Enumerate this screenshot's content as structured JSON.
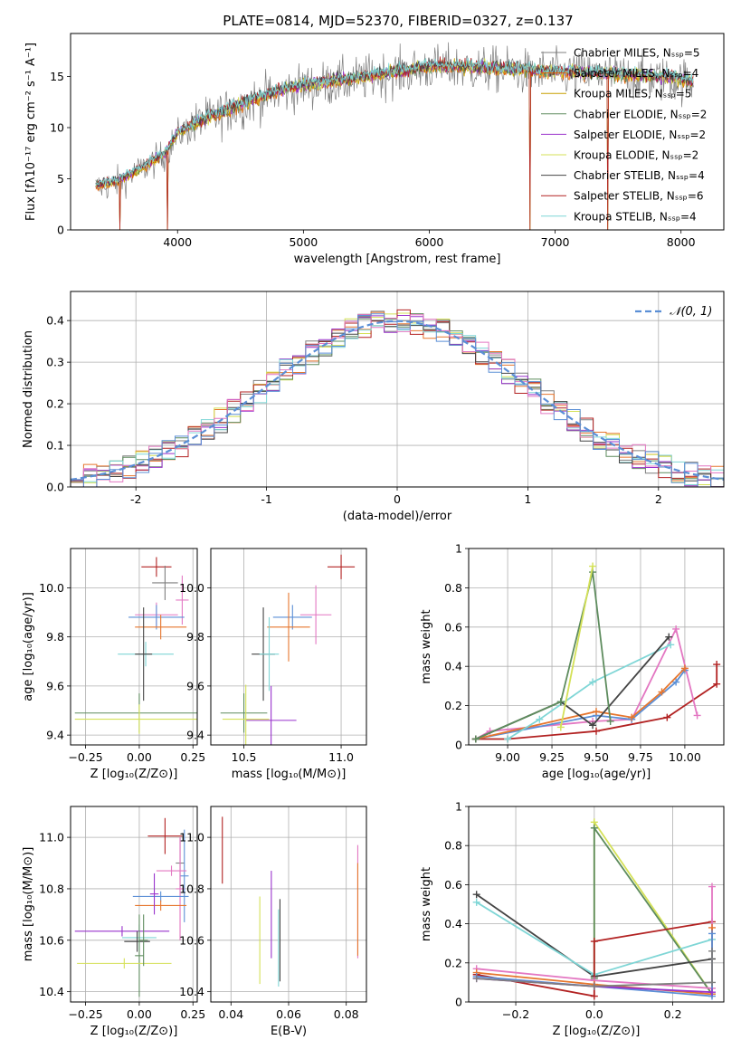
{
  "figure": {
    "title": "PLATE=0814, MJD=52370, FIBERID=0327, z=0.137"
  },
  "chart_data": [
    {
      "id": "spectrum",
      "type": "line",
      "xlabel": "wavelength [Angstrom, rest frame]",
      "ylabel": "Flux [fλ10⁻¹⁷ erg cm⁻² s⁻¹ A⁻¹]",
      "xlim": [
        3150,
        8340
      ],
      "ylim": [
        0,
        19.2
      ],
      "xticks": [
        4000,
        5000,
        6000,
        7000,
        8000
      ],
      "yticks": [
        0,
        5,
        10,
        15
      ],
      "grid": false,
      "legend_position": "right",
      "x_range_data": [
        3350,
        8100
      ],
      "legend": [
        {
          "label": "Chabrier MILES, Nₛₛₚ=5",
          "color": "#7f7f7f"
        },
        {
          "label": "Salpeter MILES, Nₛₛₚ=4",
          "color": "#e66100"
        },
        {
          "label": "Kroupa MILES, Nₛₛₚ=5",
          "color": "#c8a000"
        },
        {
          "label": "Chabrier ELODIE, Nₛₛₚ=2",
          "color": "#5e8c5e"
        },
        {
          "label": "Salpeter ELODIE, Nₛₛₚ=2",
          "color": "#9932cc"
        },
        {
          "label": "Kroupa ELODIE, Nₛₛₚ=2",
          "color": "#d4e157"
        },
        {
          "label": "Chabrier STELIB, Nₛₛₚ=4",
          "color": "#444444"
        },
        {
          "label": "Salpeter STELIB, Nₛₛₚ=6",
          "color": "#b22222"
        },
        {
          "label": "Kroupa STELIB, Nₛₛₚ=4",
          "color": "#7fd6d6"
        }
      ],
      "continuum": {
        "x": [
          3350,
          3500,
          3700,
          3900,
          4000,
          4200,
          4400,
          4600,
          4800,
          5000,
          5200,
          5400,
          5600,
          5800,
          6000,
          6200,
          6400,
          6600,
          6800,
          7000,
          7200,
          7400,
          7600,
          7800,
          8000,
          8100
        ],
        "y": [
          4.3,
          4.7,
          6.0,
          7.5,
          9.5,
          10.8,
          11.8,
          12.8,
          13.6,
          14.2,
          14.5,
          14.8,
          15.3,
          15.6,
          16.0,
          16.0,
          15.9,
          15.8,
          15.6,
          15.5,
          15.4,
          15.3,
          15.2,
          15.0,
          14.8,
          14.5
        ]
      },
      "dips_to_zero": [
        3540,
        3920,
        6800,
        7420
      ]
    },
    {
      "id": "residuals",
      "type": "line",
      "xlabel": "(data-model)/error",
      "ylabel": "Normed distribution",
      "xlim": [
        -2.5,
        2.5
      ],
      "ylim": [
        0,
        0.47
      ],
      "xticks": [
        -2,
        -1,
        0,
        1,
        2
      ],
      "yticks": [
        0.0,
        0.1,
        0.2,
        0.3,
        0.4
      ],
      "grid": true,
      "legend": [
        {
          "label": "𝒩(0, 1)",
          "color": "#5b8fd6",
          "style": "dashed"
        }
      ],
      "bin_width": 0.1,
      "step_colors": [
        "#7f7f7f",
        "#e6762e",
        "#d4e157",
        "#5e8c5e",
        "#9932cc",
        "#b22222",
        "#7fd6d6",
        "#444444",
        "#e377c2",
        "#5b8fd6"
      ]
    },
    {
      "id": "age-vs-Z",
      "type": "scatter",
      "xlabel": "Z [log₁₀(Z/Z⊙)]",
      "ylabel": "age  [log₁₀(age/yr)]",
      "xlim": [
        -0.32,
        0.27
      ],
      "ylim": [
        9.36,
        10.16
      ],
      "xticks": [
        -0.25,
        0.0,
        0.25
      ],
      "xticklabels": [
        "−0.25",
        "0.00",
        "0.25"
      ],
      "yticks": [
        9.4,
        9.6,
        9.8,
        10.0
      ],
      "yticklabels": [
        "9.4",
        "9.6",
        "9.8",
        "10.0"
      ],
      "grid": true,
      "points": [
        {
          "x": 0.08,
          "y": 10.085,
          "xerr": 0.07,
          "yerr": 0.04,
          "color": "#b22222"
        },
        {
          "x": 0.12,
          "y": 10.02,
          "xerr": 0.06,
          "yerr": 0.07,
          "color": "#7f7f7f"
        },
        {
          "x": 0.2,
          "y": 9.95,
          "xerr": 0.03,
          "yerr": 0.1,
          "color": "#e377c2"
        },
        {
          "x": 0.08,
          "y": 9.89,
          "xerr": 0.1,
          "yerr": 0.05,
          "color": "#e377c2"
        },
        {
          "x": 0.08,
          "y": 9.88,
          "xerr": 0.13,
          "yerr": 0.05,
          "color": "#5b8fd6"
        },
        {
          "x": 0.1,
          "y": 9.84,
          "xerr": 0.12,
          "yerr": 0.05,
          "color": "#e6762e"
        },
        {
          "x": 0.03,
          "y": 9.73,
          "xerr": 0.13,
          "yerr": 0.05,
          "color": "#7fd6d6"
        },
        {
          "x": 0.02,
          "y": 9.73,
          "xerr": 0.04,
          "yerr": 0.19,
          "color": "#444444"
        },
        {
          "x": 0.0,
          "y": 9.49,
          "xerr": 0.3,
          "yerr": 0.08,
          "color": "#5e8c5e"
        },
        {
          "x": 0.0,
          "y": 9.465,
          "xerr": 0.3,
          "yerr": 0.06,
          "color": "#d4e157"
        }
      ]
    },
    {
      "id": "age-vs-mass",
      "type": "scatter",
      "xlabel": "mass [log₁₀(M/M⊙)]",
      "ylabel": "",
      "xlim": [
        10.33,
        11.13
      ],
      "ylim": [
        9.36,
        10.16
      ],
      "xticks": [
        10.5,
        11.0
      ],
      "xticklabels": [
        "10.5",
        "11.0"
      ],
      "yticks": [
        9.4,
        9.6,
        9.8,
        10.0
      ],
      "yticklabels": [
        "9.4",
        "9.6",
        "9.8",
        "10.0"
      ],
      "grid": true,
      "points": [
        {
          "x": 11.0,
          "y": 10.085,
          "xerr": 0.07,
          "yerr": 0.05,
          "color": "#b22222"
        },
        {
          "x": 10.87,
          "y": 9.89,
          "xerr": 0.08,
          "yerr": 0.12,
          "color": "#e377c2"
        },
        {
          "x": 10.75,
          "y": 9.88,
          "xerr": 0.1,
          "yerr": 0.05,
          "color": "#5b8fd6"
        },
        {
          "x": 10.73,
          "y": 9.84,
          "xerr": 0.11,
          "yerr": 0.14,
          "color": "#e6762e"
        },
        {
          "x": 10.6,
          "y": 9.73,
          "xerr": 0.06,
          "yerr": 0.19,
          "color": "#444444"
        },
        {
          "x": 10.63,
          "y": 9.73,
          "xerr": 0.05,
          "yerr": 0.15,
          "color": "#7fd6d6"
        },
        {
          "x": 10.64,
          "y": 9.46,
          "xerr": 0.13,
          "yerr": 0.14,
          "color": "#9932cc"
        },
        {
          "x": 10.5,
          "y": 9.49,
          "xerr": 0.12,
          "yerr": 0.08,
          "color": "#5e8c5e"
        },
        {
          "x": 10.51,
          "y": 9.465,
          "xerr": 0.12,
          "yerr": 0.14,
          "color": "#d4e157"
        }
      ]
    },
    {
      "id": "weight-vs-age",
      "type": "line",
      "xlabel": "age  [log₁₀(age/yr)]",
      "ylabel": "mass weight",
      "xlim": [
        8.78,
        10.22
      ],
      "ylim": [
        0,
        1.0
      ],
      "xticks": [
        9.0,
        9.25,
        9.5,
        9.75,
        10.0
      ],
      "xticklabels": [
        "9.00",
        "9.25",
        "9.50",
        "9.75",
        "10.00"
      ],
      "yticks": [
        0.0,
        0.2,
        0.4,
        0.6,
        0.8,
        1.0
      ],
      "grid": true,
      "series": [
        {
          "color": "#b22222",
          "x": [
            8.82,
            9.0,
            9.5,
            9.9,
            10.18,
            10.18
          ],
          "y": [
            0.03,
            0.03,
            0.07,
            0.14,
            0.31,
            0.41
          ]
        },
        {
          "color": "#e377c2",
          "x": [
            8.82,
            8.9,
            9.48,
            9.7,
            9.95,
            10.07
          ],
          "y": [
            0.03,
            0.07,
            0.12,
            0.13,
            0.59,
            0.15
          ]
        },
        {
          "color": "#5b8fd6",
          "x": [
            8.82,
            9.5,
            9.7,
            9.95,
            10.0
          ],
          "y": [
            0.03,
            0.15,
            0.13,
            0.32,
            0.38
          ]
        },
        {
          "color": "#e6762e",
          "x": [
            8.82,
            9.5,
            9.7,
            9.87,
            10.0
          ],
          "y": [
            0.03,
            0.17,
            0.14,
            0.27,
            0.39
          ]
        },
        {
          "color": "#7fd6d6",
          "x": [
            9.0,
            9.18,
            9.48,
            9.92
          ],
          "y": [
            0.03,
            0.13,
            0.32,
            0.51
          ]
        },
        {
          "color": "#444444",
          "x": [
            8.82,
            9.3,
            9.48,
            9.91
          ],
          "y": [
            0.03,
            0.22,
            0.1,
            0.55
          ]
        },
        {
          "color": "#5e8c5e",
          "x": [
            8.82,
            9.3,
            9.48,
            9.58
          ],
          "y": [
            0.03,
            0.22,
            0.88,
            0.12
          ]
        },
        {
          "color": "#d4e157",
          "x": [
            9.3,
            9.48
          ],
          "y": [
            0.09,
            0.91
          ]
        }
      ]
    },
    {
      "id": "mass-vs-Z",
      "type": "scatter",
      "xlabel": "Z [log₁₀(Z/Z⊙)]",
      "ylabel": "mass [log₁₀(M/M⊙)]",
      "xlim": [
        -0.32,
        0.27
      ],
      "ylim": [
        10.36,
        11.12
      ],
      "xticks": [
        -0.25,
        0.0,
        0.25
      ],
      "xticklabels": [
        "−0.25",
        "0.00",
        "0.25"
      ],
      "yticks": [
        10.4,
        10.6,
        10.8,
        11.0
      ],
      "yticklabels": [
        "10.4",
        "10.6",
        "10.8",
        "11.0"
      ],
      "grid": true,
      "points": [
        {
          "x": 0.12,
          "y": 11.005,
          "xerr": 0.08,
          "yerr": 0.07,
          "color": "#b22222"
        },
        {
          "x": 0.19,
          "y": 10.9,
          "xerr": 0.02,
          "yerr": 0.1,
          "color": "#7f7f7f"
        },
        {
          "x": 0.21,
          "y": 10.85,
          "xerr": 0.02,
          "yerr": 0.18,
          "color": "#5b8fd6"
        },
        {
          "x": 0.19,
          "y": 10.8,
          "xerr": 0.02,
          "yerr": 0.2,
          "color": "#e377c2"
        },
        {
          "x": 0.15,
          "y": 10.87,
          "xerr": 0.07,
          "yerr": 0.02,
          "color": "#e377c2"
        },
        {
          "x": 0.1,
          "y": 10.77,
          "xerr": 0.13,
          "yerr": 0.02,
          "color": "#5b8fd6"
        },
        {
          "x": 0.1,
          "y": 10.735,
          "xerr": 0.12,
          "yerr": 0.02,
          "color": "#e6762e"
        },
        {
          "x": 0.07,
          "y": 10.78,
          "xerr": 0.02,
          "yerr": 0.08,
          "color": "#9932cc"
        },
        {
          "x": -0.08,
          "y": 10.635,
          "xerr": 0.22,
          "yerr": 0.02,
          "color": "#9932cc"
        },
        {
          "x": 0.0,
          "y": 10.61,
          "xerr": 0.08,
          "yerr": 0.05,
          "color": "#7fd6d6"
        },
        {
          "x": -0.01,
          "y": 10.595,
          "xerr": 0.06,
          "yerr": 0.04,
          "color": "#444444"
        },
        {
          "x": 0.0,
          "y": 10.54,
          "xerr": 0.02,
          "yerr": 0.16,
          "color": "#5e8c5e"
        },
        {
          "x": -0.07,
          "y": 10.51,
          "xerr": 0.22,
          "yerr": 0.02,
          "color": "#d4e157"
        },
        {
          "x": 0.02,
          "y": 10.6,
          "xerr": 0.02,
          "yerr": 0.1,
          "color": "#5e8c5e"
        }
      ]
    },
    {
      "id": "mass-vs-ebv",
      "type": "scatter",
      "xlabel": "E(B-V)",
      "ylabel": "",
      "xlim": [
        0.033,
        0.087
      ],
      "ylim": [
        10.36,
        11.12
      ],
      "xticks": [
        0.04,
        0.06,
        0.08
      ],
      "xticklabels": [
        "0.04",
        "0.06",
        "0.08"
      ],
      "yticks": [
        10.4,
        10.6,
        10.8,
        11.0
      ],
      "yticklabels": [
        "10.4",
        "10.6",
        "10.8",
        "11.0"
      ],
      "grid": true,
      "points": [
        {
          "x": 0.037,
          "y": 10.95,
          "xerr": 0,
          "yerr": 0.13,
          "color": "#b22222"
        },
        {
          "x": 0.05,
          "y": 10.6,
          "xerr": 0,
          "yerr": 0.17,
          "color": "#d4e157"
        },
        {
          "x": 0.054,
          "y": 10.7,
          "xerr": 0,
          "yerr": 0.17,
          "color": "#9932cc"
        },
        {
          "x": 0.057,
          "y": 10.6,
          "xerr": 0,
          "yerr": 0.16,
          "color": "#444444"
        },
        {
          "x": 0.0565,
          "y": 10.57,
          "xerr": 0,
          "yerr": 0.15,
          "color": "#7fd6d6"
        },
        {
          "x": 0.084,
          "y": 10.75,
          "xerr": 0,
          "yerr": 0.22,
          "color": "#e377c2"
        },
        {
          "x": 0.084,
          "y": 10.72,
          "xerr": 0,
          "yerr": 0.18,
          "color": "#e6762e"
        }
      ]
    },
    {
      "id": "weight-vs-Z",
      "type": "line",
      "xlabel": "Z [log₁₀(Z/Z⊙)]",
      "ylabel": "mass weight",
      "xlim": [
        -0.32,
        0.33
      ],
      "ylim": [
        0,
        1.0
      ],
      "xticks": [
        -0.2,
        0.0,
        0.2
      ],
      "xticklabels": [
        "−0.2",
        "0.0",
        "0.2"
      ],
      "yticks": [
        0.0,
        0.2,
        0.4,
        0.6,
        0.8,
        1.0
      ],
      "grid": true,
      "series": [
        {
          "color": "#d4e157",
          "x": [
            0.0,
            0.0,
            0.3
          ],
          "y": [
            0.13,
            0.92,
            0.04
          ]
        },
        {
          "color": "#5e8c5e",
          "x": [
            0.0,
            0.0,
            0.3
          ],
          "y": [
            0.12,
            0.89,
            0.04
          ]
        },
        {
          "color": "#444444",
          "x": [
            -0.3,
            0.0,
            0.3
          ],
          "y": [
            0.55,
            0.13,
            0.22
          ]
        },
        {
          "color": "#7fd6d6",
          "x": [
            -0.3,
            0.0,
            0.3
          ],
          "y": [
            0.51,
            0.14,
            0.32
          ]
        },
        {
          "color": "#b22222",
          "x": [
            -0.3,
            0.0,
            0.0,
            0.3
          ],
          "y": [
            0.14,
            0.03,
            0.31,
            0.41
          ]
        },
        {
          "color": "#e377c2",
          "x": [
            -0.3,
            0.0,
            0.3,
            0.3
          ],
          "y": [
            0.17,
            0.11,
            0.07,
            0.59
          ]
        },
        {
          "color": "#e6762e",
          "x": [
            -0.3,
            0.0,
            0.3,
            0.3
          ],
          "y": [
            0.15,
            0.09,
            0.04,
            0.38
          ]
        },
        {
          "color": "#5b8fd6",
          "x": [
            -0.3,
            0.0,
            0.3,
            0.3
          ],
          "y": [
            0.13,
            0.08,
            0.03,
            0.35
          ]
        },
        {
          "color": "#9932cc",
          "x": [
            -0.3,
            0.0,
            0.3
          ],
          "y": [
            0.12,
            0.08,
            0.05
          ]
        },
        {
          "color": "#7f7f7f",
          "x": [
            -0.3,
            0.0,
            0.3,
            0.3
          ],
          "y": [
            0.12,
            0.08,
            0.1,
            0.26
          ]
        }
      ]
    }
  ]
}
